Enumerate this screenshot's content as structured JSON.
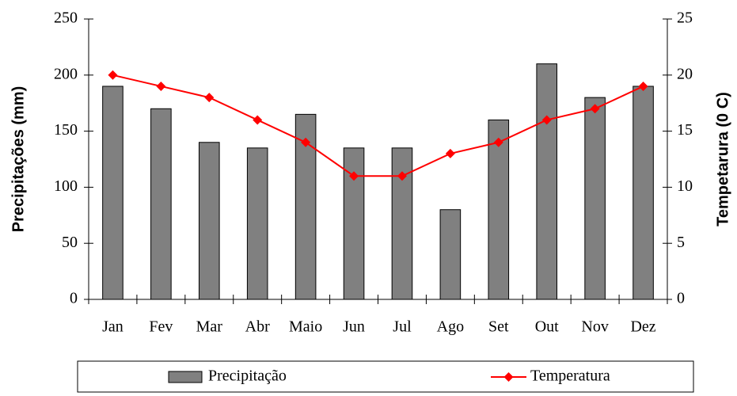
{
  "chart_data": {
    "type": "bar",
    "categories": [
      "Jan",
      "Fev",
      "Mar",
      "Abr",
      "Maio",
      "Jun",
      "Jul",
      "Ago",
      "Set",
      "Out",
      "Nov",
      "Dez"
    ],
    "series": [
      {
        "name": "Precipitação",
        "type": "bar",
        "color": "#808080",
        "axis": "y",
        "values": [
          190,
          170,
          140,
          135,
          165,
          135,
          135,
          80,
          160,
          210,
          180,
          190
        ]
      },
      {
        "name": "Temperatura",
        "type": "line",
        "color": "#ff0000",
        "axis": "y2",
        "values": [
          20,
          19,
          18,
          16,
          14,
          11,
          11,
          13,
          14,
          16,
          17,
          19
        ]
      }
    ],
    "ylabel": "Precipitações (mm)",
    "y2label": "Tempetarura (0 C)",
    "ylim": [
      0,
      250
    ],
    "yticks": [
      0,
      50,
      100,
      150,
      200,
      250
    ],
    "y2lim": [
      0,
      25
    ],
    "y2ticks": [
      0,
      5,
      10,
      15,
      20,
      25
    ],
    "legend": "bottom"
  }
}
